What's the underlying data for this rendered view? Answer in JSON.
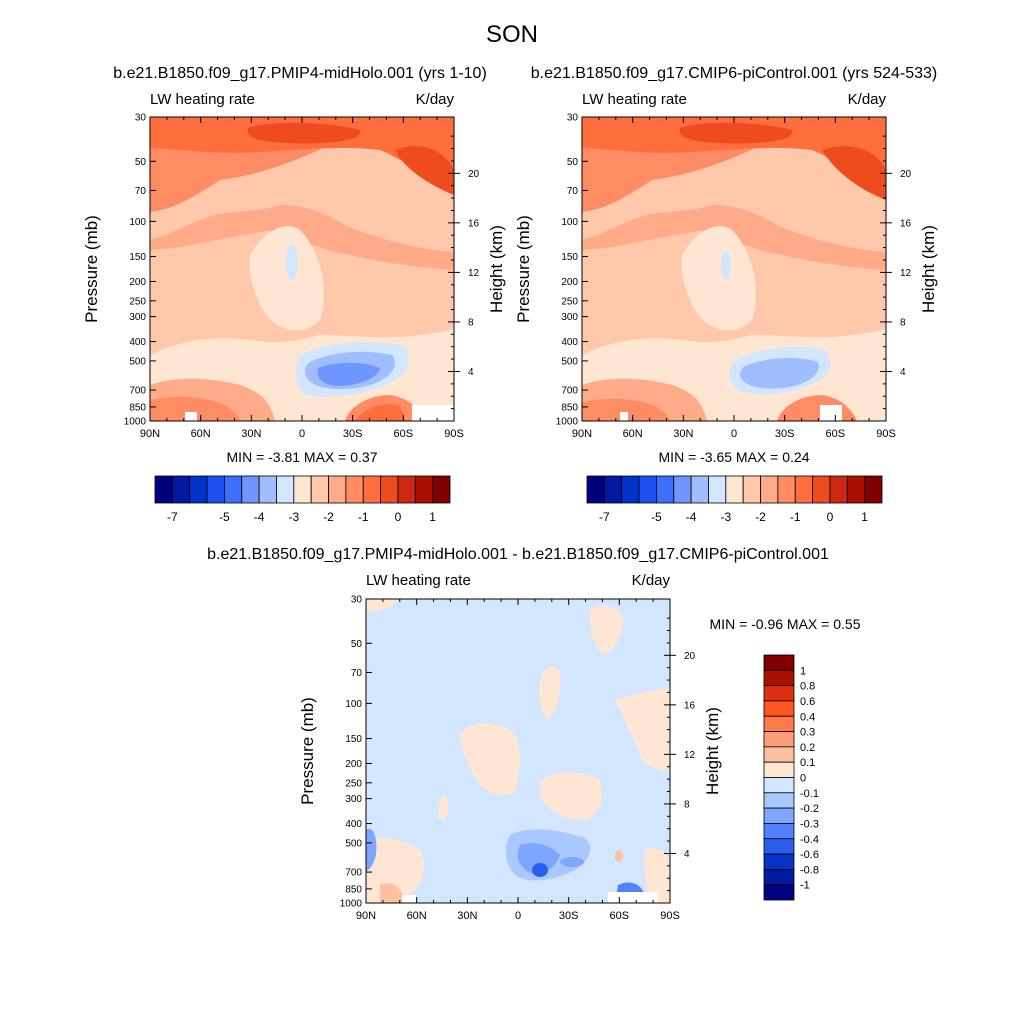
{
  "page_title": "SON",
  "chart_data": [
    {
      "type": "heatmap",
      "title": "b.e21.B1850.f09_g17.PMIP4-midHolo.001 (yrs 1-10)",
      "left_label": "LW heating rate",
      "right_label": "K/day",
      "xlabel": "",
      "ylabel": "Pressure (mb)",
      "ylabel_right": "Height (km)",
      "x_ticks": [
        "90N",
        "60N",
        "30N",
        "0",
        "30S",
        "60S",
        "90S"
      ],
      "y_ticks": [
        "30",
        "50",
        "70",
        "100",
        "150",
        "200",
        "250",
        "300",
        "400",
        "500",
        "700",
        "850",
        "1000"
      ],
      "y2_ticks": [
        "20",
        "16",
        "12",
        "8",
        "4"
      ],
      "stats": "MIN =  -3.81  MAX =   0.37",
      "colorbar": {
        "labels": [
          "-7",
          "-5",
          "-4",
          "-3",
          "-2",
          "-1",
          "0",
          "1"
        ],
        "colors": [
          "#00007f",
          "#0019a5",
          "#0032cc",
          "#1e50f0",
          "#3c6eff",
          "#6e96ff",
          "#a0beff",
          "#d2e6ff",
          "#ffe6d2",
          "#ffc8aa",
          "#ffaa88",
          "#ff8c64",
          "#ff6e3c",
          "#ee4b1e",
          "#cc2a10",
          "#aa1000",
          "#800000"
        ]
      }
    },
    {
      "type": "heatmap",
      "title": "b.e21.B1850.f09_g17.CMIP6-piControl.001 (yrs 524-533)",
      "left_label": "LW heating rate",
      "right_label": "K/day",
      "xlabel": "",
      "ylabel": "Pressure (mb)",
      "ylabel_right": "Height (km)",
      "x_ticks": [
        "90N",
        "60N",
        "30N",
        "0",
        "30S",
        "60S",
        "90S"
      ],
      "y_ticks": [
        "30",
        "50",
        "70",
        "100",
        "150",
        "200",
        "250",
        "300",
        "400",
        "500",
        "700",
        "850",
        "1000"
      ],
      "y2_ticks": [
        "20",
        "16",
        "12",
        "8",
        "4"
      ],
      "stats": "MIN =  -3.65  MAX =   0.24",
      "colorbar": {
        "labels": [
          "-7",
          "-5",
          "-4",
          "-3",
          "-2",
          "-1",
          "0",
          "1"
        ],
        "colors": [
          "#00007f",
          "#0019a5",
          "#0032cc",
          "#1e50f0",
          "#3c6eff",
          "#6e96ff",
          "#a0beff",
          "#d2e6ff",
          "#ffe6d2",
          "#ffc8aa",
          "#ffaa88",
          "#ff8c64",
          "#ff6e3c",
          "#ee4b1e",
          "#cc2a10",
          "#aa1000",
          "#800000"
        ]
      }
    },
    {
      "type": "heatmap",
      "title": "b.e21.B1850.f09_g17.PMIP4-midHolo.001 - b.e21.B1850.f09_g17.CMIP6-piControl.001",
      "left_label": "LW heating rate",
      "right_label": "K/day",
      "xlabel": "",
      "ylabel": "Pressure (mb)",
      "ylabel_right": "Height (km)",
      "x_ticks": [
        "90N",
        "60N",
        "30N",
        "0",
        "30S",
        "60S",
        "90S"
      ],
      "y_ticks": [
        "30",
        "50",
        "70",
        "100",
        "150",
        "200",
        "250",
        "300",
        "400",
        "500",
        "700",
        "850",
        "1000"
      ],
      "y2_ticks": [
        "20",
        "16",
        "12",
        "8",
        "4"
      ],
      "stats": "MIN =  -0.96  MAX =   0.55",
      "colorbar": {
        "labels": [
          "1",
          "0.8",
          "0.6",
          "0.4",
          "0.3",
          "0.2",
          "0.1",
          "0",
          "-0.1",
          "-0.2",
          "-0.3",
          "-0.4",
          "-0.6",
          "-0.8",
          "-1"
        ],
        "colors": [
          "#800000",
          "#aa1000",
          "#dd3010",
          "#ff5520",
          "#ff7a4a",
          "#ff9c78",
          "#ffc0a0",
          "#ffe6d2",
          "#d2e6ff",
          "#a8c8ff",
          "#7ea6ff",
          "#5280ff",
          "#2a5ef0",
          "#0a32c8",
          "#001aa0",
          "#000080"
        ]
      }
    }
  ]
}
